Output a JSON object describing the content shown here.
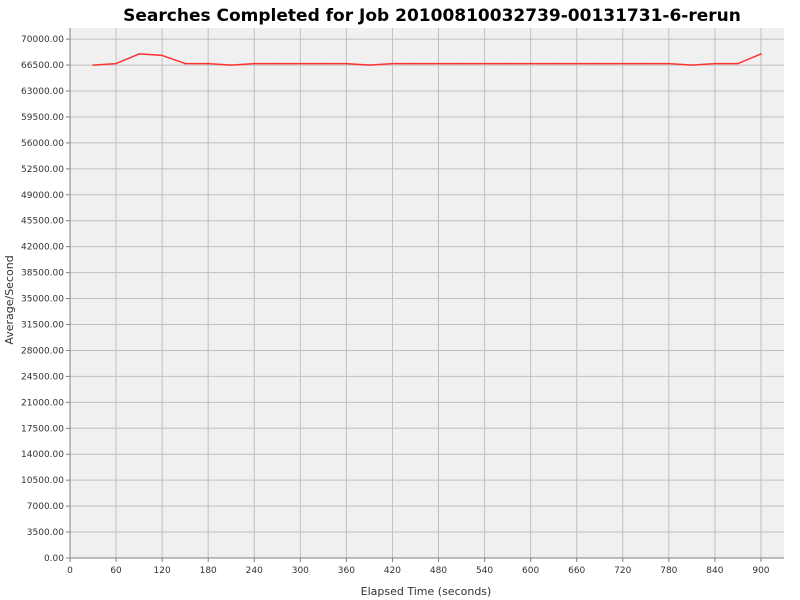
{
  "chart_data": {
    "type": "line",
    "title": "Searches Completed for Job 20100810032739-00131731-6-rerun",
    "xlabel": "Elapsed Time (seconds)",
    "ylabel": "Average/Second",
    "xlim": [
      0,
      930
    ],
    "ylim": [
      0,
      71500
    ],
    "x_ticks": [
      0,
      60,
      120,
      180,
      240,
      300,
      360,
      420,
      480,
      540,
      600,
      660,
      720,
      780,
      840,
      900
    ],
    "y_ticks": [
      0,
      3500,
      7000,
      10500,
      14000,
      17500,
      21000,
      24500,
      28000,
      31500,
      35000,
      38500,
      42000,
      45500,
      49000,
      52500,
      56000,
      59500,
      63000,
      66500,
      70000
    ],
    "y_tick_labels": [
      "0.00",
      "3500.00",
      "7000.00",
      "10500.00",
      "14000.00",
      "17500.00",
      "21000.00",
      "24500.00",
      "28000.00",
      "31500.00",
      "35000.00",
      "38500.00",
      "42000.00",
      "45500.00",
      "49000.00",
      "52500.00",
      "56000.00",
      "59500.00",
      "63000.00",
      "66500.00",
      "70000.00"
    ],
    "grid": true,
    "background": "#f0f0f0",
    "gridline_color": "#c0c0c0",
    "series": [
      {
        "color": "#ff3333",
        "x": [
          30,
          60,
          90,
          120,
          150,
          180,
          210,
          240,
          270,
          300,
          330,
          360,
          390,
          420,
          450,
          480,
          510,
          540,
          570,
          600,
          630,
          660,
          690,
          720,
          750,
          780,
          810,
          840,
          870,
          900
        ],
        "y": [
          66500,
          66700,
          68000,
          67800,
          66700,
          66700,
          66500,
          66700,
          66700,
          66700,
          66700,
          66700,
          66500,
          66700,
          66700,
          66700,
          66700,
          66700,
          66700,
          66700,
          66700,
          66700,
          66700,
          66700,
          66700,
          66700,
          66500,
          66700,
          66700,
          68000
        ]
      }
    ]
  }
}
